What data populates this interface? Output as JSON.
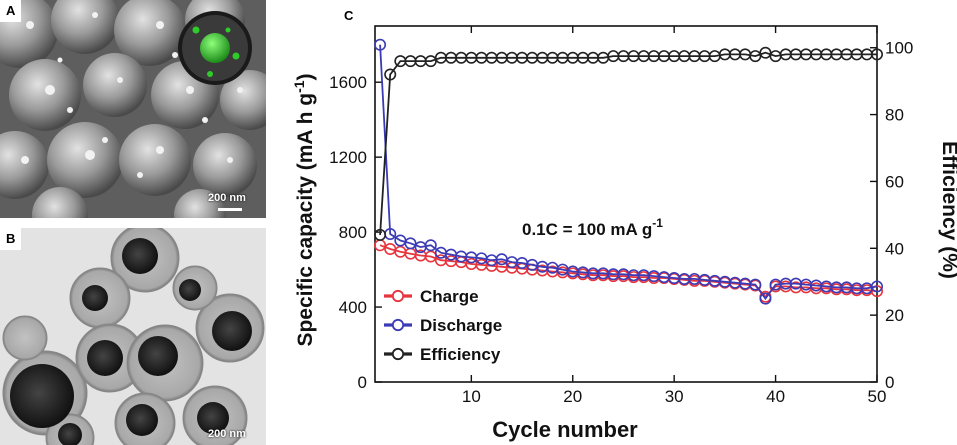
{
  "panels": {
    "a": {
      "label": "A",
      "scale_bar": "200 nm"
    },
    "b": {
      "label": "B",
      "scale_bar": "200 nm"
    },
    "c": {
      "label": "C"
    }
  },
  "chart_data": {
    "type": "scatter",
    "title": "",
    "xlabel": "Cycle number",
    "ylabel": "Specific capacity (mA h g-1)",
    "ylabel_left_main": "Specific capacity (mA h g",
    "ylabel_left_sup": "-1",
    "ylabel_left_close": ")",
    "ylabel_right": "Efficiency (%)",
    "annotation_main": "0.1C = 100 mA g",
    "annotation_sup": "-1",
    "xlim": [
      0.5,
      50
    ],
    "ylim": [
      0,
      1900
    ],
    "ylim_right": [
      0,
      106.5
    ],
    "x_ticks": [
      10,
      20,
      30,
      40,
      50
    ],
    "y_ticks": [
      0,
      400,
      800,
      1200,
      1600
    ],
    "y_ticks_right": [
      0,
      20,
      40,
      60,
      80,
      100
    ],
    "x": [
      1,
      2,
      3,
      4,
      5,
      6,
      7,
      8,
      9,
      10,
      11,
      12,
      13,
      14,
      15,
      16,
      17,
      18,
      19,
      20,
      21,
      22,
      23,
      24,
      25,
      26,
      27,
      28,
      29,
      30,
      31,
      32,
      33,
      34,
      35,
      36,
      37,
      38,
      39,
      40,
      41,
      42,
      43,
      44,
      45,
      46,
      47,
      48,
      49,
      50
    ],
    "series": [
      {
        "name": "Charge",
        "axis": "left",
        "color": "#e8343c",
        "values": [
          730,
          710,
          695,
          685,
          675,
          670,
          650,
          645,
          640,
          630,
          625,
          620,
          615,
          610,
          605,
          600,
          595,
          590,
          585,
          580,
          575,
          570,
          570,
          565,
          565,
          560,
          560,
          555,
          555,
          550,
          545,
          540,
          540,
          535,
          530,
          525,
          520,
          515,
          455,
          510,
          510,
          505,
          505,
          500,
          500,
          495,
          495,
          490,
          490,
          485
        ]
      },
      {
        "name": "Discharge",
        "axis": "left",
        "color": "#3b3bb6",
        "values": [
          1800,
          790,
          755,
          740,
          720,
          730,
          690,
          680,
          670,
          665,
          660,
          650,
          655,
          640,
          635,
          625,
          615,
          610,
          600,
          590,
          585,
          580,
          580,
          575,
          575,
          570,
          570,
          565,
          560,
          555,
          550,
          550,
          545,
          540,
          535,
          530,
          525,
          520,
          445,
          520,
          525,
          525,
          520,
          515,
          510,
          505,
          505,
          500,
          500,
          510
        ]
      },
      {
        "name": "Efficiency",
        "axis": "right",
        "color": "#222222",
        "values": [
          44,
          92,
          96,
          96,
          96,
          96,
          97,
          97,
          97,
          97,
          97,
          97,
          97,
          97,
          97,
          97,
          97,
          97,
          97,
          97,
          97,
          97,
          97,
          97.5,
          97.5,
          97.5,
          97.5,
          97.5,
          97.5,
          97.5,
          97.5,
          97.5,
          97.5,
          97.5,
          98,
          98,
          98,
          97.5,
          98.5,
          97.5,
          98,
          98,
          98,
          98,
          98,
          98,
          98,
          98,
          98,
          98
        ]
      }
    ],
    "legend": [
      {
        "label": "Charge",
        "color": "#e8343c"
      },
      {
        "label": "Discharge",
        "color": "#3b3bb6"
      },
      {
        "label": "Efficiency",
        "color": "#222222"
      }
    ],
    "legend_position": "bottom-left"
  }
}
